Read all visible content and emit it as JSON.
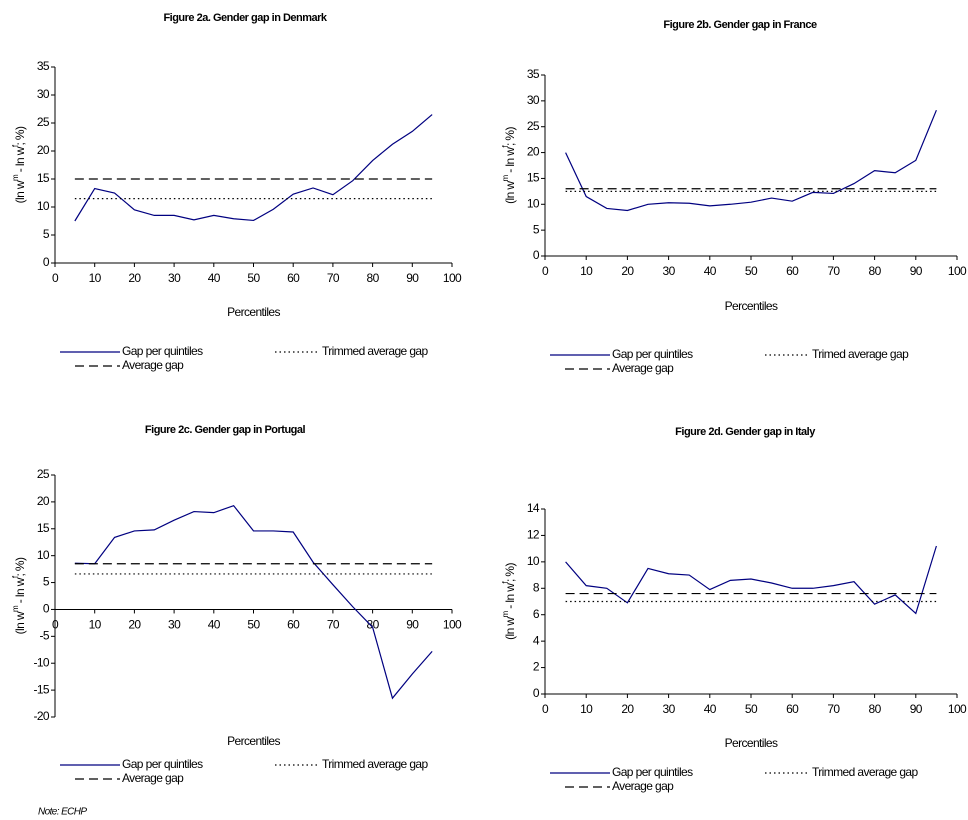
{
  "note": "Note: ECHP",
  "chart_data": [
    {
      "type": "line",
      "title": "Figure 2a. Gender gap in Denmark",
      "xlabel": "Percentiles",
      "ylabel": [
        "(ln w",
        "m",
        " - ln w",
        "f",
        "; %)"
      ],
      "xlim": [
        0,
        100
      ],
      "xticks": [
        0,
        10,
        20,
        30,
        40,
        50,
        60,
        70,
        80,
        90,
        100
      ],
      "ylim": [
        0,
        35
      ],
      "yticks": [
        0,
        5,
        10,
        15,
        20,
        25,
        30,
        35
      ],
      "series": [
        {
          "name": "Gap per quintiles",
          "color": "#000080",
          "line_style": "solid",
          "x": [
            5,
            10,
            15,
            20,
            25,
            30,
            35,
            40,
            45,
            50,
            55,
            60,
            65,
            70,
            75,
            80,
            85,
            90,
            95
          ],
          "values": [
            7.5,
            13.3,
            12.5,
            9.5,
            8.5,
            8.5,
            7.7,
            8.5,
            7.9,
            7.6,
            9.6,
            12.3,
            13.4,
            12.2,
            14.7,
            18.3,
            21.2,
            23.5,
            26.5
          ]
        },
        {
          "name": "Trimmed average gap",
          "color": "#000000",
          "line_style": "dotted",
          "x": [
            5,
            95
          ],
          "values": [
            11.5,
            11.5
          ]
        },
        {
          "name": "Average gap",
          "color": "#000000",
          "line_style": "dashed",
          "x": [
            5,
            95
          ],
          "values": [
            15,
            15
          ]
        }
      ]
    },
    {
      "type": "line",
      "title": "Figure 2b. Gender gap in France",
      "xlabel": "Percentiles",
      "ylabel": [
        "(ln w",
        "m",
        " - ln w",
        "f",
        "; %)"
      ],
      "xlim": [
        0,
        100
      ],
      "xticks": [
        0,
        10,
        20,
        30,
        40,
        50,
        60,
        70,
        80,
        90,
        100
      ],
      "ylim": [
        0,
        35
      ],
      "yticks": [
        0,
        5,
        10,
        15,
        20,
        25,
        30,
        35
      ],
      "series": [
        {
          "name": "Gap per quintiles",
          "color": "#000080",
          "line_style": "solid",
          "x": [
            5,
            10,
            15,
            20,
            25,
            30,
            35,
            40,
            45,
            50,
            55,
            60,
            65,
            70,
            75,
            80,
            85,
            90,
            95
          ],
          "values": [
            20,
            11.5,
            9.2,
            8.8,
            10,
            10.3,
            10.2,
            9.7,
            10,
            10.4,
            11.2,
            10.6,
            12.3,
            12.1,
            14,
            16.5,
            16.1,
            18.5,
            28.2
          ]
        },
        {
          "name": "Trimed average gap",
          "color": "#000000",
          "line_style": "dotted",
          "x": [
            5,
            95
          ],
          "values": [
            12.5,
            12.5
          ]
        },
        {
          "name": "Average gap",
          "color": "#000000",
          "line_style": "dashed",
          "x": [
            5,
            95
          ],
          "values": [
            13,
            13
          ]
        }
      ]
    },
    {
      "type": "line",
      "title": "Figure 2c. Gender gap in Portugal",
      "xlabel": "Percentiles",
      "ylabel": [
        "(ln w",
        "m",
        " - ln w",
        "f",
        "; %)"
      ],
      "xlim": [
        0,
        100
      ],
      "xticks": [
        0,
        10,
        20,
        30,
        40,
        50,
        60,
        70,
        80,
        90,
        100
      ],
      "ylim": [
        -20,
        25
      ],
      "yticks": [
        -20,
        -15,
        -10,
        -5,
        0,
        5,
        10,
        15,
        20,
        25
      ],
      "series": [
        {
          "name": "Gap per quintiles",
          "color": "#000080",
          "line_style": "solid",
          "x": [
            5,
            10,
            15,
            20,
            25,
            30,
            35,
            40,
            45,
            50,
            55,
            60,
            65,
            70,
            75,
            80,
            85,
            90,
            95
          ],
          "values": [
            8.6,
            8.5,
            13.4,
            14.6,
            14.8,
            16.6,
            18.2,
            18,
            19.3,
            14.6,
            14.6,
            14.4,
            8.8,
            4.6,
            0.5,
            -3.3,
            -16.5,
            -12,
            -7.8
          ]
        },
        {
          "name": "Trimmed average gap",
          "color": "#000000",
          "line_style": "dotted",
          "x": [
            5,
            95
          ],
          "values": [
            6.6,
            6.6
          ]
        },
        {
          "name": "Average gap",
          "color": "#000000",
          "line_style": "dashed",
          "x": [
            5,
            95
          ],
          "values": [
            8.5,
            8.5
          ]
        }
      ]
    },
    {
      "type": "line",
      "title": "Figure 2d. Gender gap in Italy",
      "xlabel": "Percentiles",
      "ylabel": [
        "(ln w",
        "m",
        " - ln w",
        "f",
        "; %)"
      ],
      "xlim": [
        0,
        100
      ],
      "xticks": [
        0,
        10,
        20,
        30,
        40,
        50,
        60,
        70,
        80,
        90,
        100
      ],
      "ylim": [
        0,
        14
      ],
      "yticks": [
        0,
        2,
        4,
        6,
        8,
        10,
        12,
        14
      ],
      "series": [
        {
          "name": "Gap per quintiles",
          "color": "#000080",
          "line_style": "solid",
          "x": [
            5,
            10,
            15,
            20,
            25,
            30,
            35,
            40,
            45,
            50,
            55,
            60,
            65,
            70,
            75,
            80,
            85,
            90,
            95
          ],
          "values": [
            10,
            8.2,
            8,
            6.9,
            9.5,
            9.1,
            9,
            7.9,
            8.6,
            8.7,
            8.4,
            8,
            8,
            8.2,
            8.5,
            6.8,
            7.5,
            6.1,
            11.2
          ]
        },
        {
          "name": "Trimmed average gap",
          "color": "#000000",
          "line_style": "dotted",
          "x": [
            5,
            95
          ],
          "values": [
            7,
            7
          ]
        },
        {
          "name": "Average gap",
          "color": "#000000",
          "line_style": "dashed",
          "x": [
            5,
            95
          ],
          "values": [
            7.6,
            7.6
          ]
        }
      ]
    }
  ]
}
